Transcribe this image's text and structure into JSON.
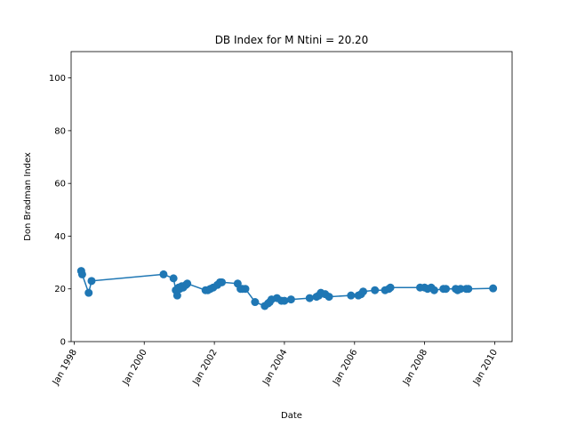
{
  "chart_data": {
    "type": "line",
    "title": "DB Index for M Ntini = 20.20",
    "xlabel": "Date",
    "ylabel": "Don Bradman Index",
    "xlim": [
      "1997-12-01",
      "1997-12-01"
    ],
    "xlim_note": "",
    "x_range": [
      "1997-11-30",
      "2010-07-01"
    ],
    "ylim": [
      0,
      110
    ],
    "y_ticks": [
      0,
      20,
      40,
      60,
      80,
      100
    ],
    "x_ticks": [
      {
        "date": "1998-01-01",
        "label": "Jan 1998"
      },
      {
        "date": "2000-01-01",
        "label": "Jan 2000"
      },
      {
        "date": "2002-01-01",
        "label": "Jan 2002"
      },
      {
        "date": "2004-01-01",
        "label": "Jan 2004"
      },
      {
        "date": "2006-01-01",
        "label": "Jan 2006"
      },
      {
        "date": "2008-01-01",
        "label": "Jan 2008"
      },
      {
        "date": "2010-01-01",
        "label": "Jan 2010"
      }
    ],
    "grid": false,
    "color": "#1f77b4",
    "series": [
      {
        "x": [
          "1998-03-15",
          "1998-03-25",
          "1998-06-01",
          "1998-07-01",
          "2000-07-20",
          "2000-11-01",
          "2000-11-25",
          "2000-12-10",
          "2000-12-25",
          "2001-01-05",
          "2001-01-25",
          "2001-02-10",
          "2001-03-10",
          "2001-03-25",
          "2001-10-01",
          "2001-10-25",
          "2001-11-20",
          "2001-12-20",
          "2002-02-01",
          "2002-03-01",
          "2002-03-20",
          "2002-09-01",
          "2002-10-01",
          "2002-10-20",
          "2002-11-20",
          "2003-03-01",
          "2003-06-10",
          "2003-07-15",
          "2003-08-01",
          "2003-08-20",
          "2003-10-15",
          "2003-12-01",
          "2004-01-01",
          "2004-03-10",
          "2004-09-20",
          "2004-12-01",
          "2004-12-25",
          "2005-01-15",
          "2005-03-01",
          "2005-04-10",
          "2005-11-25",
          "2006-02-10",
          "2006-03-10",
          "2006-04-01",
          "2006-08-01",
          "2006-11-15",
          "2006-12-25",
          "2007-01-10",
          "2007-11-15",
          "2008-01-01",
          "2008-02-01",
          "2008-03-10",
          "2008-04-10",
          "2008-07-15",
          "2008-08-10",
          "2008-11-20",
          "2008-12-10",
          "2009-01-10",
          "2009-03-10",
          "2009-04-01",
          "2009-12-15"
        ],
        "y": [
          26.8,
          25.5,
          18.5,
          23.0,
          25.5,
          24.0,
          19.5,
          17.5,
          20.5,
          20.0,
          21.0,
          20.5,
          21.5,
          22.0,
          19.5,
          19.5,
          20.0,
          20.5,
          21.5,
          22.5,
          22.5,
          22.0,
          20.0,
          20.0,
          20.0,
          15.0,
          13.5,
          14.5,
          15.0,
          16.0,
          16.5,
          15.5,
          15.5,
          16.0,
          16.5,
          17.0,
          17.5,
          18.5,
          18.0,
          17.0,
          17.5,
          17.5,
          18.0,
          19.0,
          19.5,
          19.5,
          20.0,
          20.5,
          20.5,
          20.5,
          20.0,
          20.5,
          19.5,
          20.0,
          20.0,
          20.0,
          19.5,
          20.0,
          20.0,
          20.0,
          20.2
        ]
      }
    ]
  }
}
